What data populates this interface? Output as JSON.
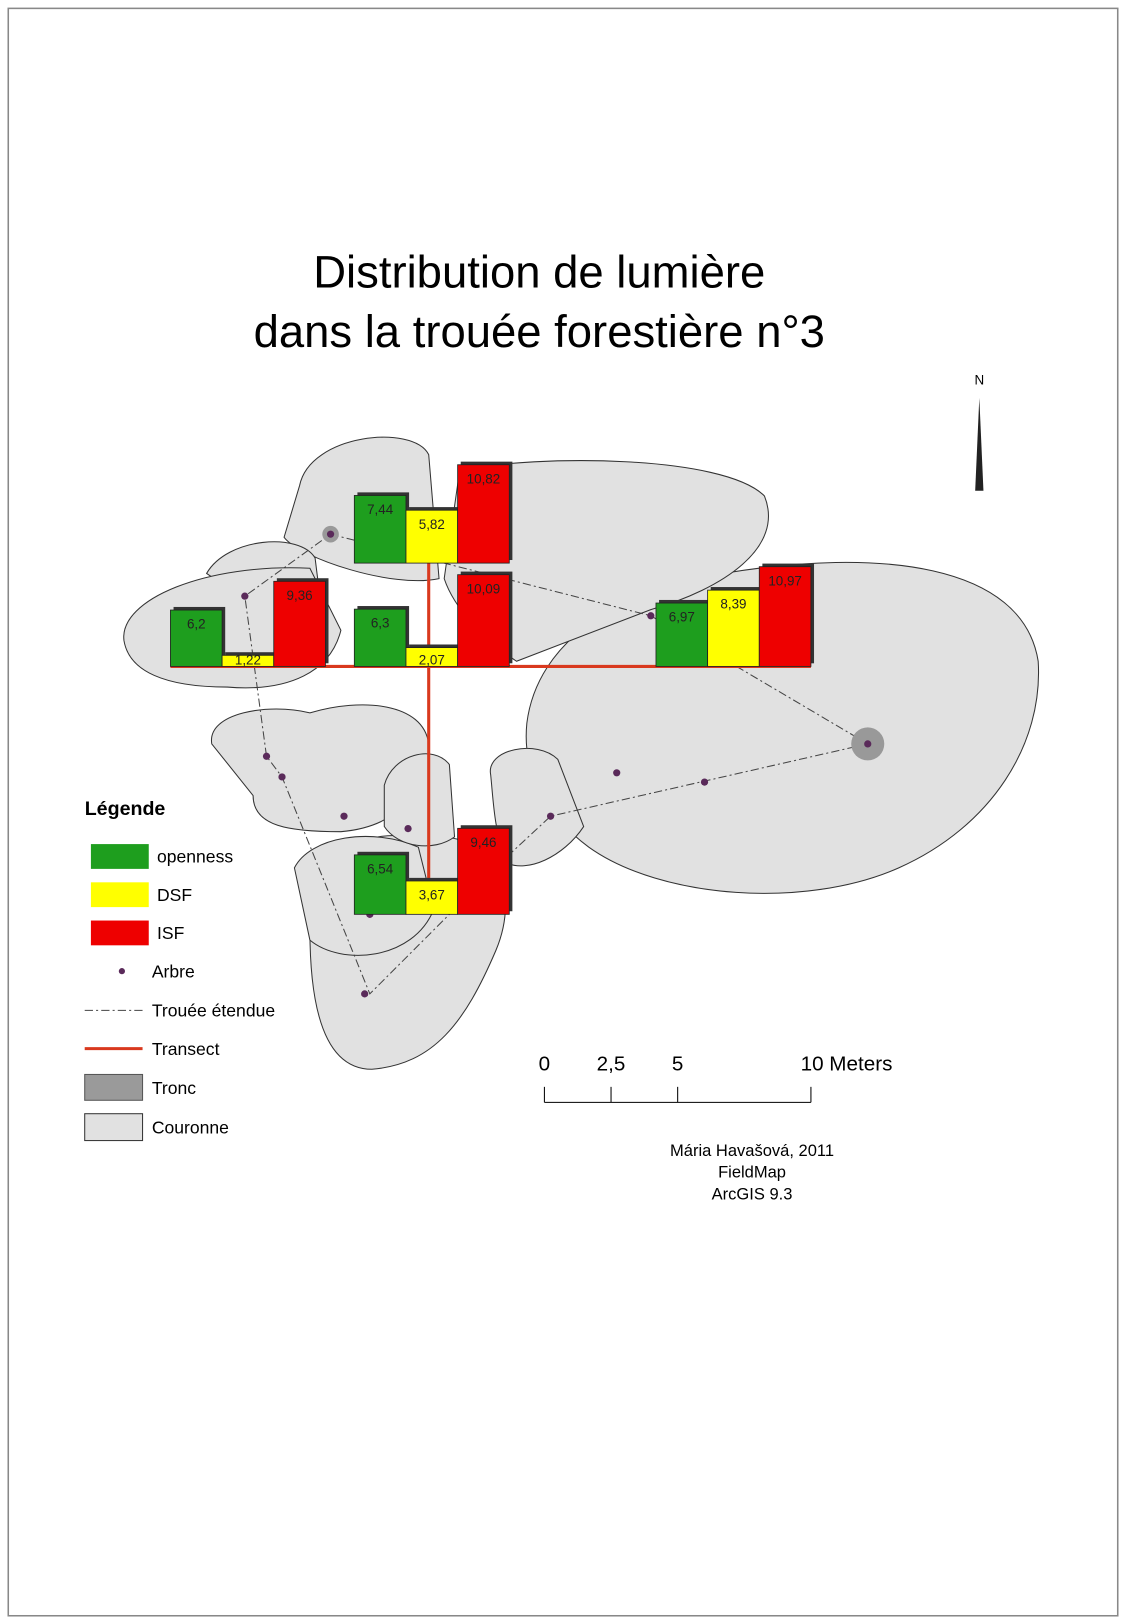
{
  "title": [
    "Distribution de lumière",
    "dans la trouée forestière n°3"
  ],
  "north_arrow": "N",
  "chart_data": {
    "type": "bar",
    "categories": [
      null,
      null,
      null,
      null,
      null
    ],
    "series": [
      {
        "name": "openness",
        "color": "#1e9e1e",
        "values": [
          7.44,
          6.2,
          6.3,
          6.97,
          6.54
        ],
        "value_labels": [
          "7,44",
          "6,2",
          "6,3",
          "6,97",
          "6,54"
        ]
      },
      {
        "name": "DSF",
        "color": "#ffff00",
        "values": [
          5.82,
          1.22,
          2.07,
          8.39,
          3.67
        ],
        "value_labels": [
          "5,82",
          "1,22",
          "2,07",
          "8,39",
          "3,67"
        ]
      },
      {
        "name": "ISF",
        "color": "#ee0000",
        "values": [
          10.82,
          9.36,
          10.09,
          10.97,
          9.46
        ],
        "value_labels": [
          "10,82",
          "9,36",
          "10,09",
          "10,97",
          "9,46"
        ]
      }
    ]
  },
  "legend": {
    "title": "Légende",
    "items": [
      "Arbre",
      "Trouée étendue",
      "Transect",
      "Tronc",
      "Couronne"
    ]
  },
  "scale_bar": {
    "xlim": [
      0,
      10
    ],
    "xticks": [
      0,
      {
        "value": 2.5,
        "label": "2,5"
      },
      5,
      {
        "value": 10,
        "label": "10 Meters"
      }
    ]
  },
  "credits": [
    "Mária Havašová, 2011",
    "FieldMap",
    "ArcGIS 9.3"
  ]
}
